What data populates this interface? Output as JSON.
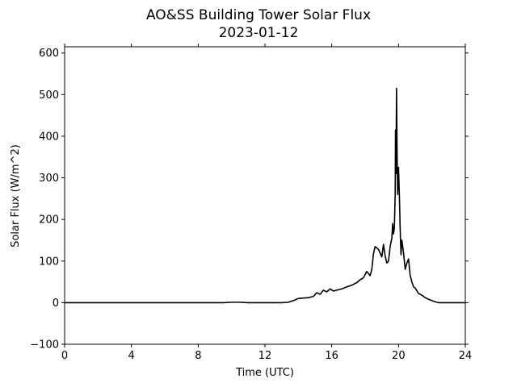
{
  "chart_data": {
    "type": "line",
    "title": "AO&SS Building Tower Solar Flux",
    "subtitle": "2023-01-12",
    "xlabel": "Time (UTC)",
    "ylabel": "Solar Flux (W/m^2)",
    "xlim": [
      0,
      24
    ],
    "ylim": [
      -100,
      615
    ],
    "xticks": [
      0,
      4,
      8,
      12,
      16,
      20,
      24
    ],
    "yticks": [
      -100,
      0,
      100,
      200,
      300,
      400,
      500,
      600
    ],
    "grid": false,
    "line_color": "#000000",
    "series": [
      {
        "x": [
          0,
          2,
          4,
          6,
          8,
          9.5,
          10,
          10.5,
          11,
          12,
          12.5,
          13,
          13.4,
          13.7,
          14,
          14.3,
          14.6,
          14.9,
          15.1,
          15.3,
          15.5,
          15.7,
          15.9,
          16.1,
          16.3,
          16.6,
          16.9,
          17.2,
          17.5,
          17.7,
          17.9,
          18.1,
          18.3,
          18.4,
          18.5,
          18.6,
          18.8,
          19.0,
          19.1,
          19.2,
          19.3,
          19.4,
          19.5,
          19.6,
          19.65,
          19.7,
          19.75,
          19.8,
          19.82,
          19.85,
          19.88,
          19.92,
          19.95,
          20.0,
          20.05,
          20.1,
          20.15,
          20.2,
          20.3,
          20.4,
          20.5,
          20.6,
          20.7,
          20.8,
          20.9,
          21.0,
          21.2,
          21.4,
          21.6,
          21.8,
          22.0,
          22.2,
          22.4,
          22.6,
          22.8,
          23.0,
          23.2,
          23.5,
          24
        ],
        "y": [
          0,
          0,
          0,
          0,
          0,
          0,
          1,
          1,
          0,
          0,
          0,
          0,
          1,
          5,
          10,
          11,
          12,
          15,
          24,
          20,
          30,
          26,
          33,
          28,
          30,
          33,
          38,
          42,
          48,
          55,
          60,
          75,
          65,
          80,
          118,
          135,
          128,
          110,
          140,
          112,
          95,
          100,
          135,
          155,
          190,
          165,
          180,
          260,
          415,
          310,
          515,
          340,
          260,
          325,
          260,
          175,
          115,
          150,
          120,
          80,
          95,
          105,
          65,
          50,
          38,
          35,
          22,
          18,
          12,
          8,
          5,
          2,
          0,
          0,
          0,
          0,
          0,
          0,
          0
        ]
      }
    ]
  }
}
